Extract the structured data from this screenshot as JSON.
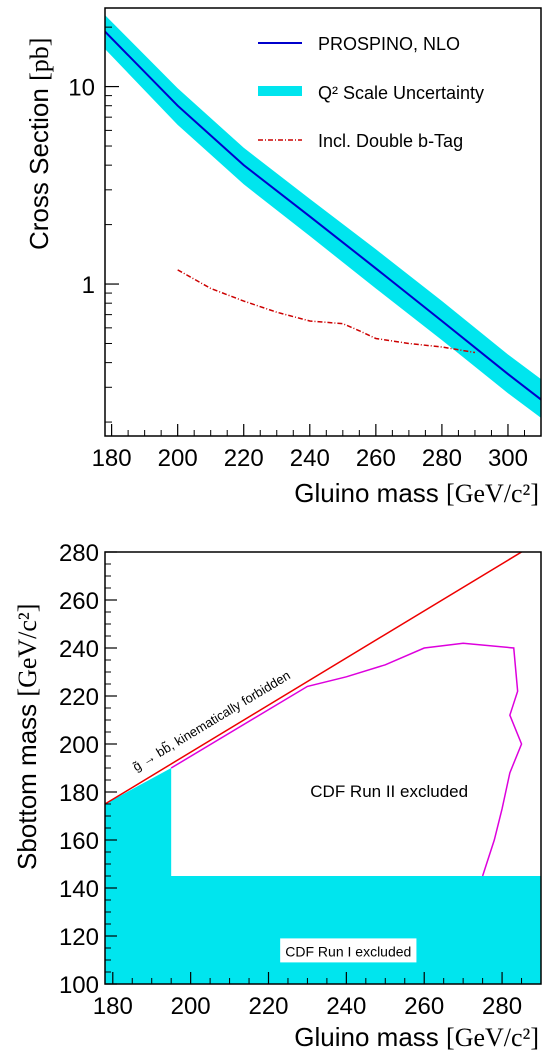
{
  "chart_data": [
    {
      "type": "line",
      "xlabel": "Gluino mass",
      "xunit": "[GeV/c²]",
      "ylabel": "Cross Section",
      "yunit": "[pb]",
      "ylog": true,
      "xlim": [
        178,
        310
      ],
      "ylim": [
        0.17,
        25
      ],
      "xticks": [
        "180",
        "200",
        "220",
        "240",
        "260",
        "280",
        "300"
      ],
      "yticks": [
        "1",
        "10"
      ],
      "legend_position": "top-right",
      "series": [
        {
          "name": "PROSPINO, NLO",
          "color": "#0000cc",
          "x": [
            178,
            200,
            220,
            240,
            260,
            280,
            300,
            310
          ],
          "y": [
            19.0,
            8.0,
            4.0,
            2.2,
            1.2,
            0.65,
            0.35,
            0.26
          ]
        },
        {
          "name": "Q² Scale Uncertainty",
          "color": "#00e5ee",
          "x": [
            178,
            200,
            220,
            240,
            260,
            280,
            300,
            310
          ],
          "y_low": [
            15.5,
            6.4,
            3.2,
            1.75,
            0.95,
            0.52,
            0.28,
            0.21
          ],
          "y_high": [
            23.0,
            9.8,
            4.9,
            2.7,
            1.5,
            0.82,
            0.44,
            0.33
          ]
        },
        {
          "name": "Incl. Double b-Tag",
          "color": "#cc0000",
          "x": [
            200,
            210,
            220,
            230,
            240,
            250,
            255,
            260,
            270,
            280,
            290
          ],
          "y": [
            1.18,
            0.95,
            0.82,
            0.72,
            0.65,
            0.63,
            0.58,
            0.53,
            0.5,
            0.48,
            0.45
          ]
        }
      ]
    },
    {
      "type": "area",
      "xlabel": "Gluino mass",
      "xunit": "[GeV/c²]",
      "ylabel": "Sbottom mass",
      "yunit": "[GeV/c²]",
      "xlim": [
        178,
        290
      ],
      "ylim": [
        100,
        280
      ],
      "xticks": [
        "180",
        "200",
        "220",
        "240",
        "260",
        "280"
      ],
      "yticks": [
        "100",
        "120",
        "140",
        "160",
        "180",
        "200",
        "220",
        "240",
        "260",
        "280"
      ],
      "forbidden_line": {
        "label": "g̃ → bb̃, kinematically forbidden",
        "color": "#ee0000",
        "x": [
          178,
          285
        ],
        "y": [
          175,
          280
        ]
      },
      "run1_region": {
        "label": "CDF Run I excluded",
        "color": "#00e5ee",
        "x": [
          178,
          195,
          195,
          290,
          290,
          178
        ],
        "y": [
          175,
          190,
          145,
          145,
          100,
          100
        ]
      },
      "run2_contour": {
        "label": "CDF Run II excluded",
        "color": "#dd00dd",
        "x": [
          195,
          230,
          240,
          250,
          260,
          270,
          283,
          284,
          282,
          285,
          282,
          280,
          278,
          275
        ],
        "y": [
          190,
          224,
          228,
          233,
          240,
          242,
          240,
          222,
          212,
          200,
          188,
          173,
          160,
          145
        ]
      }
    }
  ]
}
